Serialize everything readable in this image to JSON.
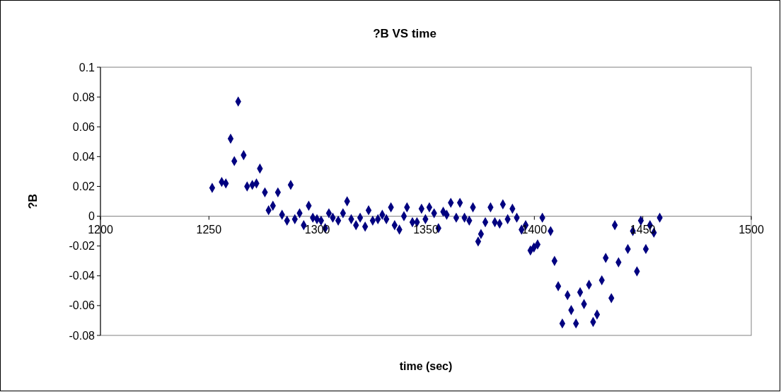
{
  "chart_data": {
    "type": "scatter",
    "title": "?B VS time",
    "xlabel": "time (sec)",
    "ylabel": "?B",
    "xlim": [
      1200,
      1500
    ],
    "xticks": [
      1200,
      1250,
      1300,
      1350,
      1400,
      1450,
      1500
    ],
    "ylim": [
      -0.08,
      0.1
    ],
    "yticks": [
      -0.08,
      -0.06,
      -0.04,
      -0.02,
      0,
      0.02,
      0.04,
      0.06,
      0.08,
      0.1
    ],
    "grid": false,
    "marker": "diamond",
    "x": [
      1251.5,
      1255.9,
      1257.8,
      1260,
      1261.7,
      1263.5,
      1266,
      1267.6,
      1270,
      1271.9,
      1273.5,
      1275.8,
      1277.5,
      1279.5,
      1281.8,
      1283.7,
      1286,
      1287.7,
      1289.6,
      1291.8,
      1293.7,
      1296,
      1297.9,
      1299.8,
      1301.7,
      1303.6,
      1305.3,
      1307.1,
      1309.6,
      1311.8,
      1313.7,
      1315.6,
      1317.8,
      1319.7,
      1322,
      1323.6,
      1325.5,
      1327.9,
      1329.9,
      1331.8,
      1333.9,
      1335.6,
      1337.8,
      1339.9,
      1341.3,
      1343.8,
      1345.9,
      1348,
      1349.8,
      1351.6,
      1353.8,
      1355.8,
      1358,
      1359.6,
      1361.5,
      1364,
      1365.7,
      1367.8,
      1370,
      1371.7,
      1374.1,
      1375.4,
      1377.4,
      1379.8,
      1381.8,
      1384,
      1385.5,
      1387.7,
      1389.9,
      1391.9,
      1394.1,
      1396,
      1398.2,
      1399.8,
      1401.5,
      1403.7,
      1407.5,
      1409.3,
      1411,
      1412.9,
      1415.3,
      1417,
      1419.2,
      1421.1,
      1422.9,
      1425.2,
      1427.1,
      1428.9,
      1431.1,
      1432.9,
      1435.5,
      1437.1,
      1438.8,
      1443.1,
      1445.4,
      1447.3,
      1449.1,
      1451.4,
      1453.3,
      1455.1,
      1457.8
    ],
    "series": [
      {
        "color": "#000080",
        "values": [
          0.019,
          0.023,
          0.022,
          0.052,
          0.037,
          0.077,
          0.041,
          0.02,
          0.021,
          0.022,
          0.032,
          0.016,
          0.004,
          0.007,
          0.016,
          0.001,
          -0.003,
          0.021,
          -0.002,
          0.002,
          -0.006,
          0.007,
          -0.001,
          -0.002,
          -0.003,
          -0.008,
          0.002,
          -0.001,
          -0.003,
          0.002,
          0.01,
          -0.002,
          -0.006,
          -0.001,
          -0.007,
          0.004,
          -0.003,
          -0.002,
          0.001,
          -0.002,
          0.006,
          -0.006,
          -0.009,
          0,
          0.006,
          -0.004,
          -0.004,
          0.005,
          -0.002,
          0.006,
          0.002,
          -0.008,
          0.003,
          0.001,
          0.009,
          -0.001,
          0.009,
          -0.001,
          -0.003,
          0.006,
          -0.017,
          -0.012,
          -0.004,
          0.006,
          -0.004,
          -0.005,
          0.008,
          -0.002,
          0.005,
          -0.001,
          -0.009,
          -0.006,
          -0.023,
          -0.021,
          -0.019,
          -0.001,
          -0.01,
          -0.03,
          -0.047,
          -0.072,
          -0.053,
          -0.063,
          -0.072,
          -0.051,
          -0.059,
          -0.046,
          -0.071,
          -0.066,
          -0.043,
          -0.028,
          -0.055,
          -0.006,
          -0.031,
          -0.022,
          -0.01,
          -0.037,
          -0.003,
          -0.022,
          -0.006,
          -0.011,
          -0.001
        ]
      }
    ]
  }
}
